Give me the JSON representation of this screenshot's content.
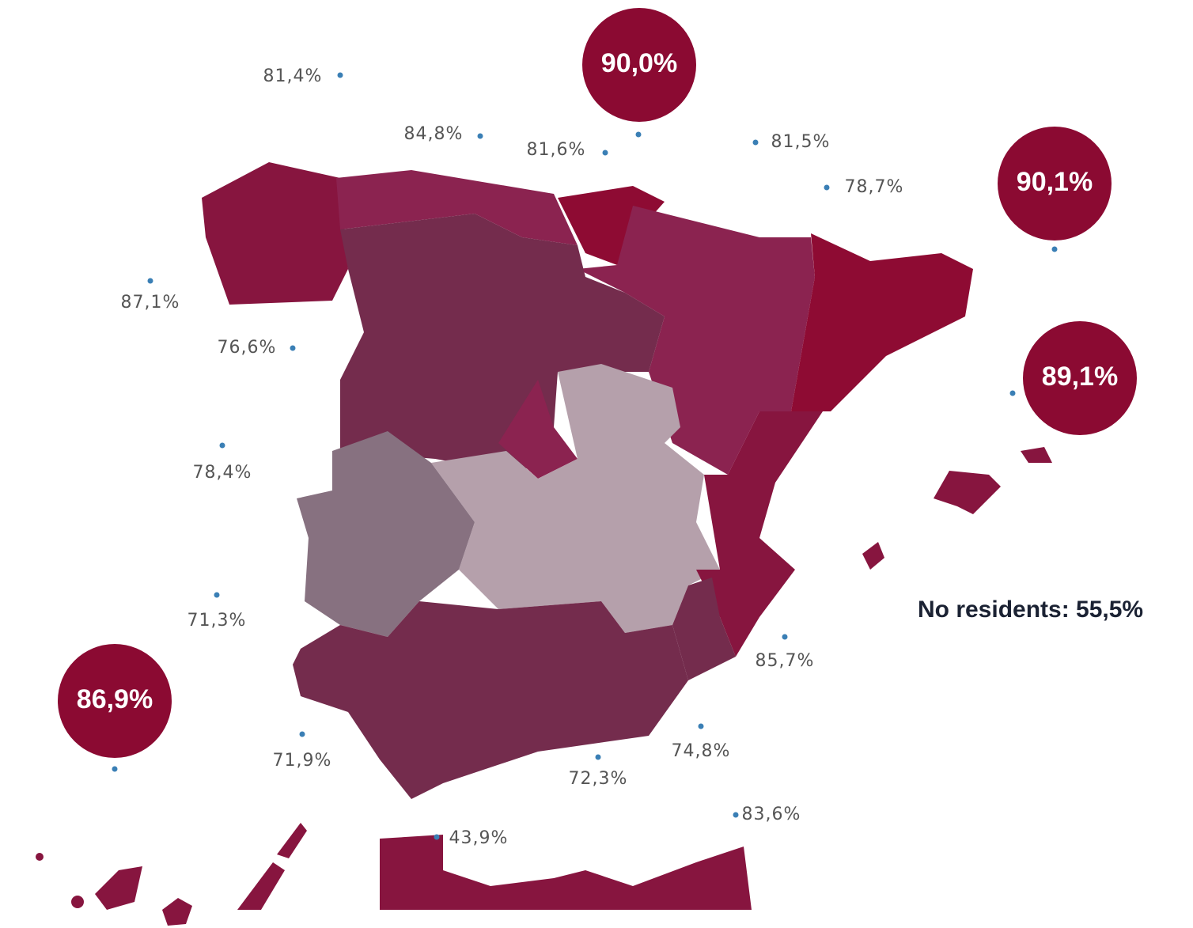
{
  "labels": [
    "81,4%",
    "84,8%",
    "81,6%",
    "81,5%",
    "78,7%",
    "87,1%",
    "76,6%",
    "78,4%",
    "71,3%",
    "85,7%",
    "71,9%",
    "74,8%",
    "72,3%",
    "83,6%",
    "43,9%"
  ],
  "highlights": [
    "90,0%",
    "90,1%",
    "89,1%",
    "86,9%"
  ],
  "note": "No residents: 55,5%"
}
